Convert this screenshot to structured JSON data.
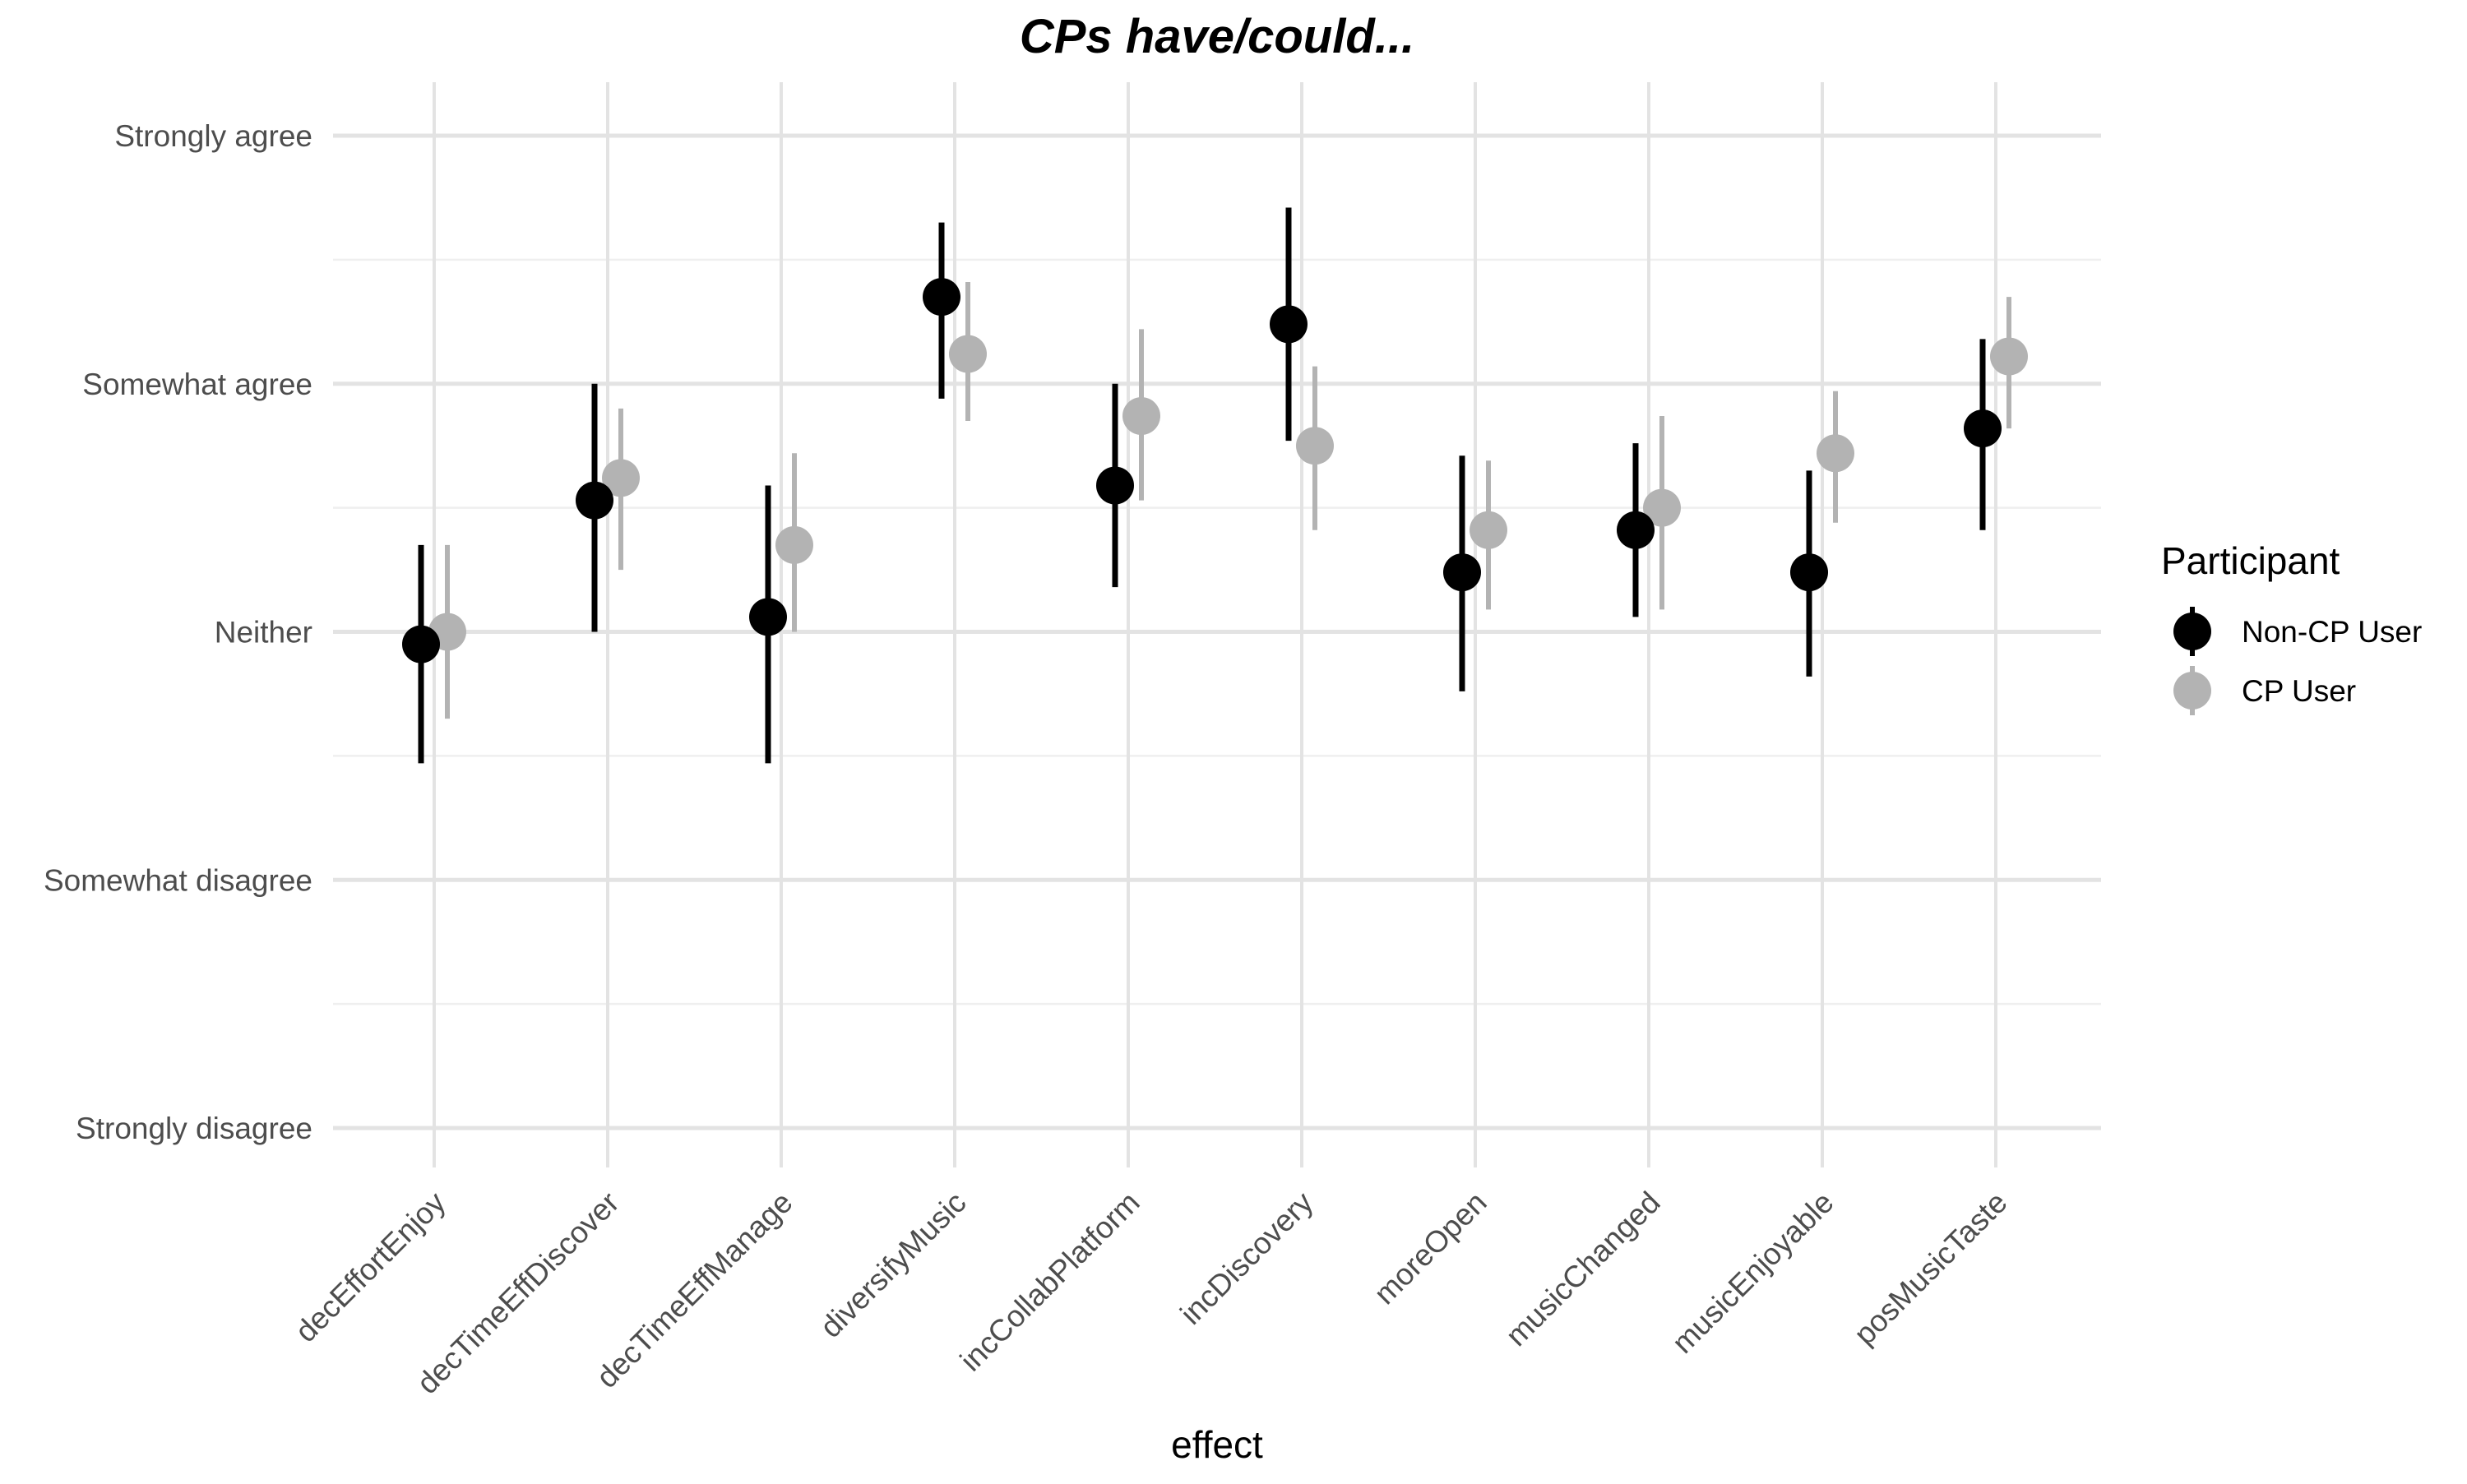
{
  "chart_data": {
    "type": "scatter",
    "title": "CPs have/could...",
    "xlabel": "effect",
    "ylabel": "",
    "categories": [
      "decEffortEnjoy",
      "decTimeEffDiscover",
      "decTimeEffManage",
      "diversifyMusic",
      "incCollabPlatform",
      "incDiscovery",
      "moreOpen",
      "musicChanged",
      "musicEnjoyable",
      "posMusicTaste"
    ],
    "y_scale": {
      "min": 1,
      "max": 5,
      "tick_values": [
        1,
        2,
        3,
        4,
        5
      ],
      "tick_labels": [
        "Strongly disagree",
        "Somewhat disagree",
        "Neither",
        "Somewhat agree",
        "Strongly agree"
      ]
    },
    "ylim": [
      0.83,
      5.2
    ],
    "legend": {
      "title": "Participant",
      "position": "right"
    },
    "series": [
      {
        "name": "Non-CP User",
        "color": "#000000",
        "values": [
          2.95,
          3.53,
          3.06,
          4.35,
          3.59,
          4.24,
          3.24,
          3.41,
          3.24,
          3.82
        ],
        "lower": [
          2.47,
          3.0,
          2.47,
          3.94,
          3.18,
          3.77,
          2.76,
          3.06,
          2.82,
          3.41
        ],
        "upper": [
          3.35,
          4.0,
          3.59,
          4.65,
          4.0,
          4.71,
          3.71,
          3.76,
          3.65,
          4.18
        ]
      },
      {
        "name": "CP User",
        "color": "#b3b3b3",
        "values": [
          3.0,
          3.62,
          3.35,
          4.12,
          3.87,
          3.75,
          3.41,
          3.5,
          3.72,
          4.11
        ],
        "lower": [
          2.65,
          3.25,
          3.0,
          3.85,
          3.53,
          3.41,
          3.09,
          3.09,
          3.44,
          3.82
        ],
        "upper": [
          3.35,
          3.9,
          3.72,
          4.41,
          4.22,
          4.07,
          3.69,
          3.87,
          3.97,
          4.35
        ]
      }
    ]
  }
}
